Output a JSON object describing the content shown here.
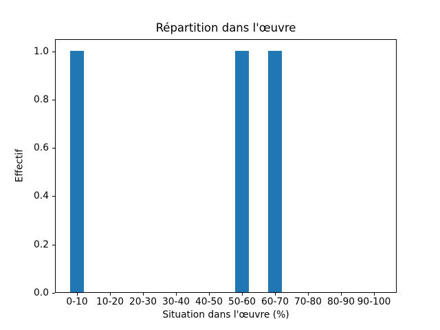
{
  "chart_data": {
    "type": "bar",
    "title": "Répartition dans l'œuvre",
    "xlabel": "Situation dans l'œuvre (%)",
    "ylabel": "Effectif",
    "categories": [
      "0-10",
      "10-20",
      "20-30",
      "30-40",
      "40-50",
      "50-60",
      "60-70",
      "70-80",
      "80-90",
      "90-100"
    ],
    "values": [
      1,
      0,
      0,
      0,
      0,
      1,
      1,
      0,
      0,
      0
    ],
    "yticks": [
      0.0,
      0.2,
      0.4,
      0.6,
      0.8,
      1.0
    ],
    "ytick_labels": [
      "0.0",
      "0.2",
      "0.4",
      "0.6",
      "0.8",
      "1.0"
    ],
    "ylim": [
      0,
      1.05
    ],
    "bar_color": "#1f77b4",
    "background_color": "#ffffff",
    "text_color": "#000000",
    "grid": false,
    "legend": "none"
  }
}
